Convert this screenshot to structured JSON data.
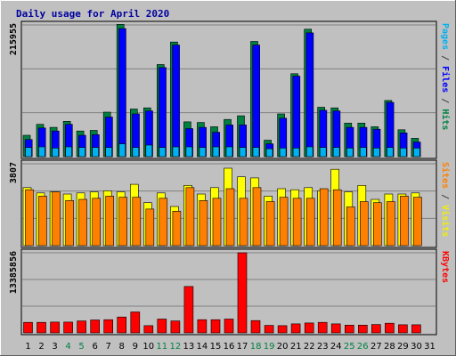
{
  "chart_data": {
    "type": "bar",
    "title": "Daily usage for April 2020",
    "days": [
      "1",
      "2",
      "3",
      "4",
      "5",
      "6",
      "7",
      "8",
      "9",
      "10",
      "11",
      "12",
      "13",
      "14",
      "15",
      "16",
      "17",
      "18",
      "19",
      "20",
      "21",
      "22",
      "23",
      "24",
      "25",
      "26",
      "27",
      "28",
      "29",
      "30",
      "31"
    ],
    "weekend_days": [
      "4",
      "5",
      "11",
      "12",
      "18",
      "19",
      "25",
      "26"
    ],
    "panels": [
      {
        "id": "top",
        "max_label": "215955",
        "ymax": 215955,
        "side_label": [
          {
            "text": "Pages",
            "color": "#00b0f0"
          },
          {
            "text": " / ",
            "color": "#404040"
          },
          {
            "text": "Files",
            "color": "#0000ff"
          },
          {
            "text": " / ",
            "color": "#404040"
          },
          {
            "text": "Hits",
            "color": "#008040"
          }
        ],
        "series": [
          {
            "name": "Hits",
            "color": "#008040",
            "values": [
              35000,
              53000,
              48000,
              58000,
              42000,
              43000,
              73000,
              217000,
              78000,
              80000,
              151000,
              188000,
              57000,
              56000,
              49000,
              61000,
              67000,
              189000,
              27000,
              70000,
              136000,
              209000,
              81000,
              80000,
              55000,
              55000,
              49000,
              92000,
              44000,
              30000,
              0
            ]
          },
          {
            "name": "Files",
            "color": "#0000ff",
            "values": [
              28000,
              47000,
              42000,
              53000,
              35000,
              36000,
              65000,
              210000,
              70000,
              75000,
              146000,
              183000,
              46000,
              48000,
              40000,
              52000,
              52000,
              183000,
              21000,
              63000,
              132000,
              203000,
              76000,
              75000,
              48000,
              48000,
              45000,
              89000,
              39000,
              24000,
              0
            ]
          },
          {
            "name": "Pages",
            "color": "#00b0f0",
            "values": [
              15000,
              16000,
              14000,
              16000,
              15000,
              15000,
              15000,
              21000,
              15000,
              19000,
              15000,
              16000,
              16000,
              15000,
              16000,
              16000,
              15000,
              15000,
              13000,
              14000,
              14000,
              16000,
              15000,
              15000,
              14000,
              15000,
              14000,
              15000,
              14000,
              14000,
              0
            ]
          }
        ]
      },
      {
        "id": "mid",
        "max_label": "3807",
        "ymax": 3807,
        "side_label": [
          {
            "text": "Sites",
            "color": "#ff8000"
          },
          {
            "text": " / ",
            "color": "#404040"
          },
          {
            "text": "Visits",
            "color": "#f0f000"
          }
        ],
        "series": [
          {
            "name": "Visits",
            "color": "#ffff00",
            "values": [
              2700,
              2450,
              2500,
              2400,
              2450,
              2500,
              2550,
              2500,
              2850,
              2000,
              2450,
              1820,
              2800,
              2400,
              2700,
              3600,
              3200,
              3150,
              2300,
              2650,
              2600,
              2700,
              2550,
              3550,
              2500,
              2800,
              2150,
              2400,
              2400,
              2450,
              0
            ]
          },
          {
            "name": "Sites",
            "color": "#ff8000",
            "values": [
              2600,
              2300,
              2500,
              2100,
              2150,
              2200,
              2300,
              2250,
              2250,
              1700,
              2200,
              1600,
              2700,
              2100,
              2200,
              2650,
              2200,
              2700,
              2050,
              2250,
              2200,
              2200,
              2650,
              2600,
              1800,
              2050,
              2000,
              2050,
              2300,
              2250,
              0
            ]
          }
        ]
      },
      {
        "id": "bot",
        "max_label": "13385856",
        "ymax": 13385856,
        "side_label": [
          {
            "text": "KBytes",
            "color": "#ff0000"
          }
        ],
        "series": [
          {
            "name": "KBytes",
            "color": "#ff0000",
            "values": [
              1750000,
              1750000,
              1800000,
              1800000,
              2000000,
              2150000,
              2200000,
              2650000,
              3500000,
              1200000,
              2300000,
              2000000,
              7750000,
              2200000,
              2200000,
              2300000,
              13385856,
              2050000,
              1250000,
              1200000,
              1500000,
              1650000,
              1750000,
              1500000,
              1300000,
              1300000,
              1400000,
              1600000,
              1350000,
              1350000,
              0
            ]
          }
        ]
      }
    ]
  }
}
